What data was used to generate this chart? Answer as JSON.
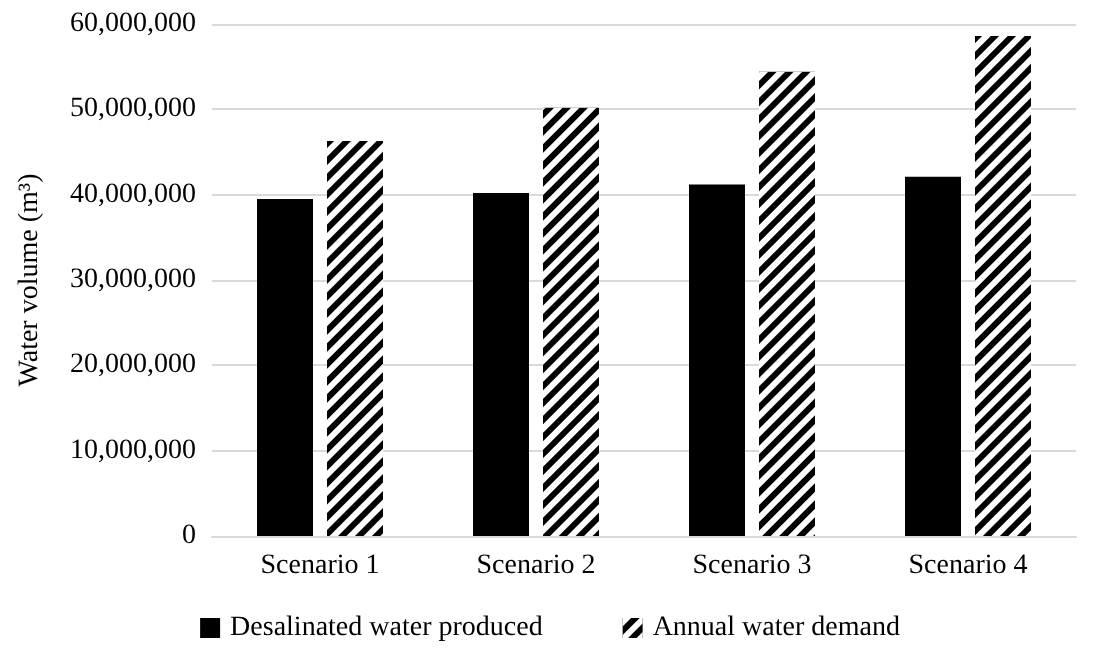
{
  "chart_data": {
    "type": "bar",
    "ylabel": "Water volume (m³)",
    "categories": [
      "Scenario 1",
      "Scenario 2",
      "Scenario 3",
      "Scenario 4"
    ],
    "series": [
      {
        "name": "Desalinated water produced",
        "color": "#000000",
        "values": [
          39500000,
          40200000,
          41200000,
          42100000
        ]
      },
      {
        "name": "Annual water demand",
        "color": "#000000",
        "values": [
          46300000,
          50200000,
          54400000,
          58600000
        ]
      }
    ],
    "ylim": [
      0,
      60000000
    ],
    "yticks": [
      0,
      {
        "value": 10000000,
        "label": "10,000,000"
      },
      {
        "value": 20000000,
        "label": "20,000,000"
      },
      {
        "value": 30000000,
        "label": "30,000,000"
      },
      {
        "value": 40000000,
        "label": "40,000,000"
      },
      {
        "value": 50000000,
        "label": "50,000,000"
      },
      {
        "value": 60000000,
        "label": "60,000,000"
      }
    ],
    "grid": "y",
    "legend": "bottom"
  }
}
